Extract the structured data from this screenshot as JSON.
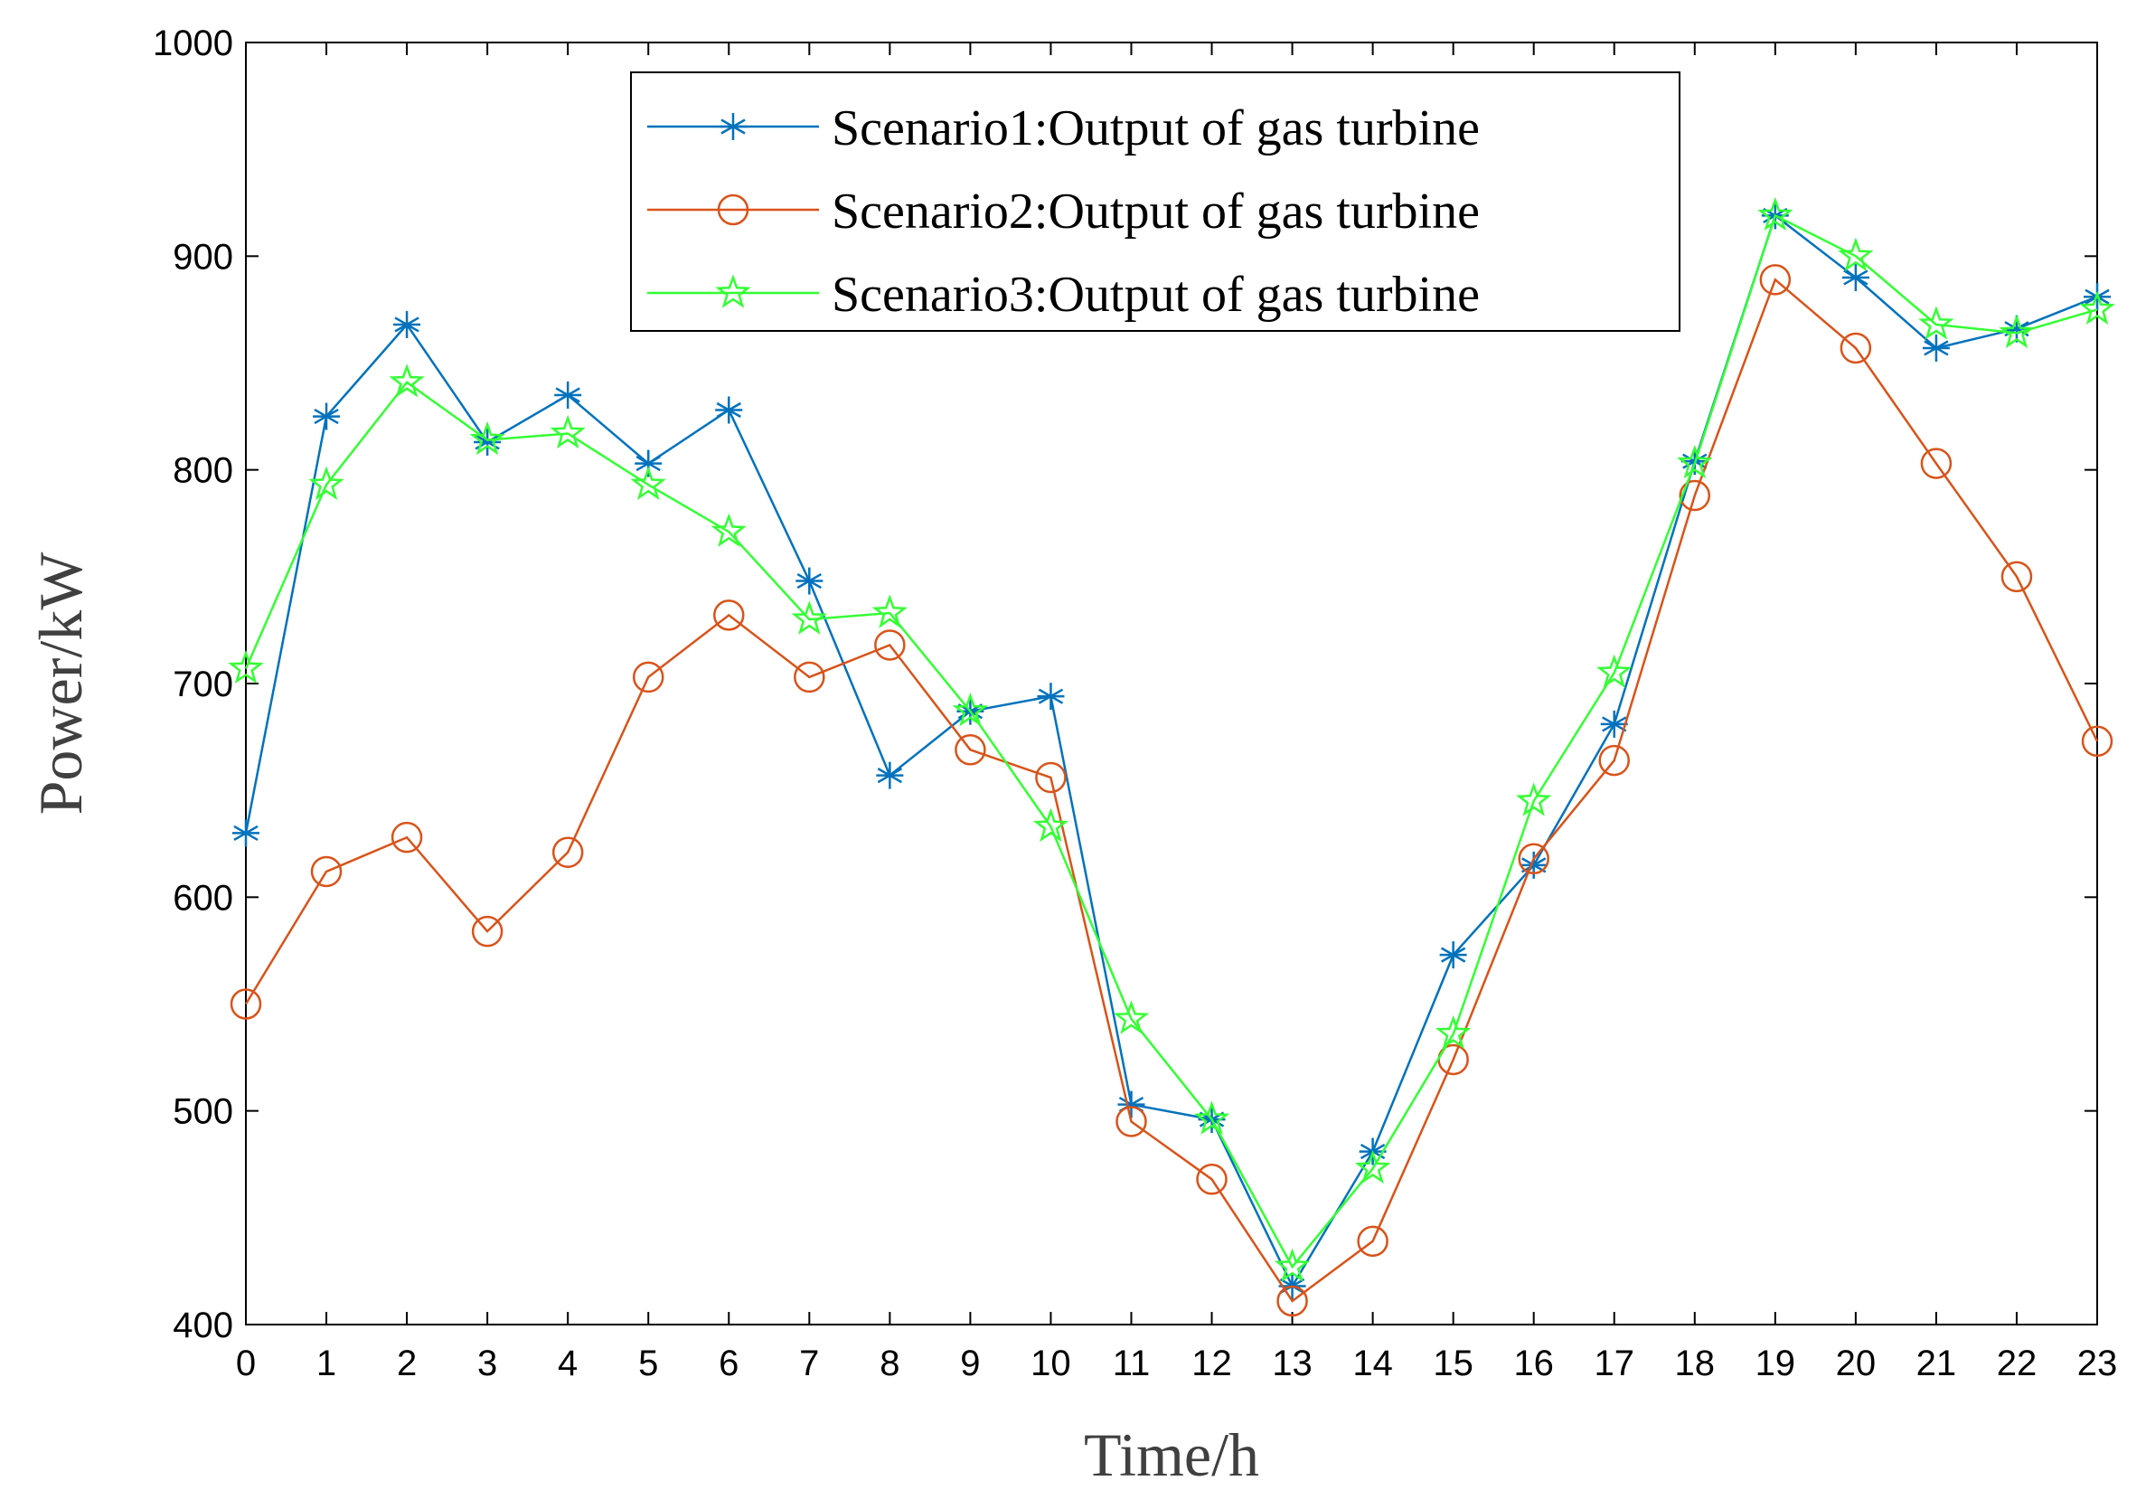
{
  "chart_data": {
    "type": "line",
    "title": "",
    "xlabel": "Time/h",
    "ylabel": "Power/kW",
    "xlim": [
      0,
      23
    ],
    "ylim": [
      400,
      1000
    ],
    "grid": false,
    "legend_position": "top-center",
    "x": [
      0,
      1,
      2,
      3,
      4,
      5,
      6,
      7,
      8,
      9,
      10,
      11,
      12,
      13,
      14,
      15,
      16,
      17,
      18,
      19,
      20,
      21,
      22,
      23
    ],
    "x_ticks": [
      "0",
      "1",
      "2",
      "3",
      "4",
      "5",
      "6",
      "7",
      "8",
      "9",
      "10",
      "11",
      "12",
      "13",
      "14",
      "15",
      "16",
      "17",
      "18",
      "19",
      "20",
      "21",
      "22",
      "23"
    ],
    "y_ticks": [
      "400",
      "500",
      "600",
      "700",
      "800",
      "900",
      "1000"
    ],
    "series": [
      {
        "name": "Scenario1:Output of gas turbine",
        "color": "#0072BD",
        "marker": "asterisk",
        "values": [
          630,
          825,
          868,
          813,
          835,
          803,
          828,
          748,
          657,
          687,
          694,
          503,
          496,
          418,
          481,
          573,
          615,
          681,
          804,
          919,
          890,
          857,
          866,
          881
        ]
      },
      {
        "name": "Scenario2:Output of gas turbine",
        "color": "#D95319",
        "marker": "circle",
        "values": [
          550,
          612,
          628,
          584,
          621,
          703,
          732,
          703,
          718,
          669,
          656,
          495,
          468,
          411,
          439,
          524,
          618,
          664,
          788,
          889,
          857,
          803,
          750,
          673
        ]
      },
      {
        "name": "Scenario3:Output of gas turbine",
        "color": "#33FF33",
        "marker": "star",
        "values": [
          707,
          793,
          841,
          814,
          817,
          793,
          771,
          730,
          733,
          687,
          633,
          543,
          496,
          427,
          473,
          536,
          645,
          705,
          803,
          919,
          900,
          868,
          864,
          875
        ]
      }
    ]
  }
}
